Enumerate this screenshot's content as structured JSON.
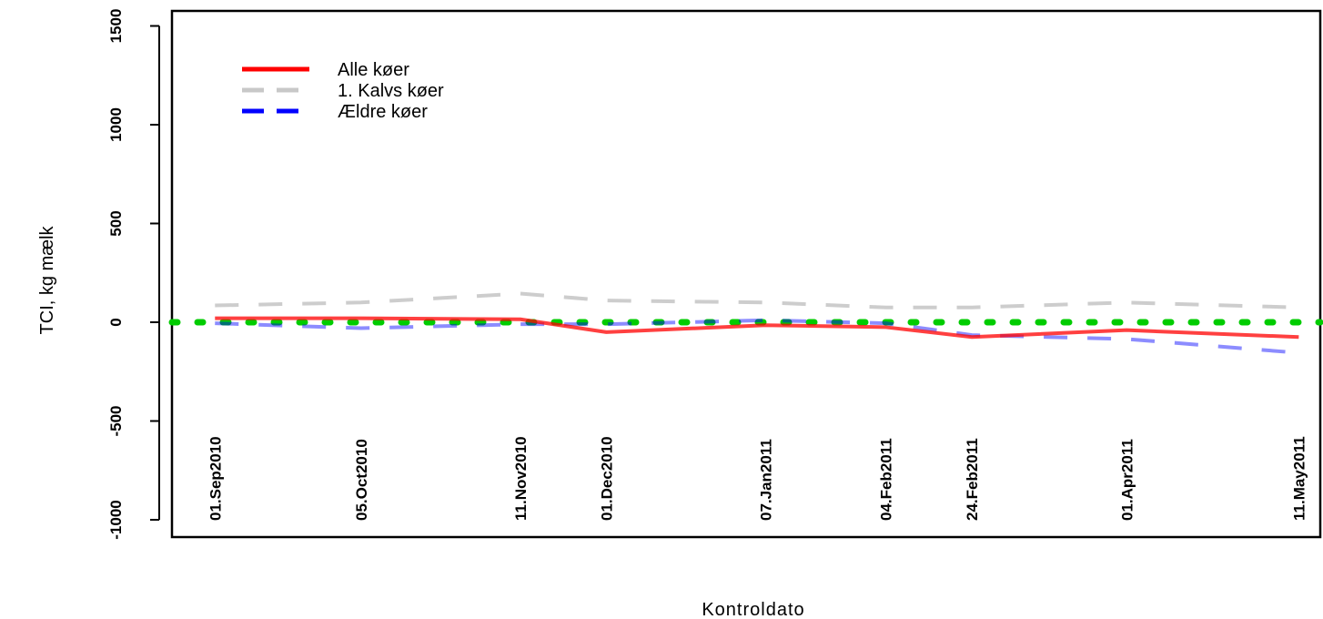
{
  "chart_data": {
    "type": "line",
    "title": "",
    "xlabel": "Kontroldato",
    "ylabel": "TCI, kg mælk",
    "ylim": [
      -1000,
      1500
    ],
    "yticks": [
      -1000,
      -500,
      0,
      500,
      1000,
      1500
    ],
    "categories": [
      "01.Sep2010",
      "05.Oct2010",
      "11.Nov2010",
      "01.Dec2010",
      "07.Jan2011",
      "04.Feb2011",
      "24.Feb2011",
      "01.Apr2011",
      "11.May2011"
    ],
    "x_days": [
      0,
      34,
      71,
      91,
      128,
      156,
      176,
      212,
      252
    ],
    "x_range": [
      -10,
      257
    ],
    "series": [
      {
        "name": "Alle køer",
        "color": "#ff0000",
        "dash": "solid",
        "values": [
          20,
          20,
          15,
          -50,
          -15,
          -25,
          -75,
          -40,
          -75
        ]
      },
      {
        "name": "1. Kalvs køer",
        "color": "#c8c8c8",
        "dash": "dashed",
        "values": [
          85,
          100,
          145,
          110,
          100,
          75,
          75,
          100,
          75
        ]
      },
      {
        "name": "Ældre køer",
        "color": "#0000ff",
        "dash": "dashed",
        "values": [
          -5,
          -30,
          -10,
          -10,
          10,
          -5,
          -65,
          -85,
          -155
        ]
      }
    ],
    "reference_line": {
      "value": 0,
      "color": "#00cc00",
      "style": "dotted"
    },
    "legend": {
      "position": "top-left",
      "entries": [
        "Alle køer",
        "1. Kalvs køer",
        "Ældre køer"
      ]
    }
  }
}
